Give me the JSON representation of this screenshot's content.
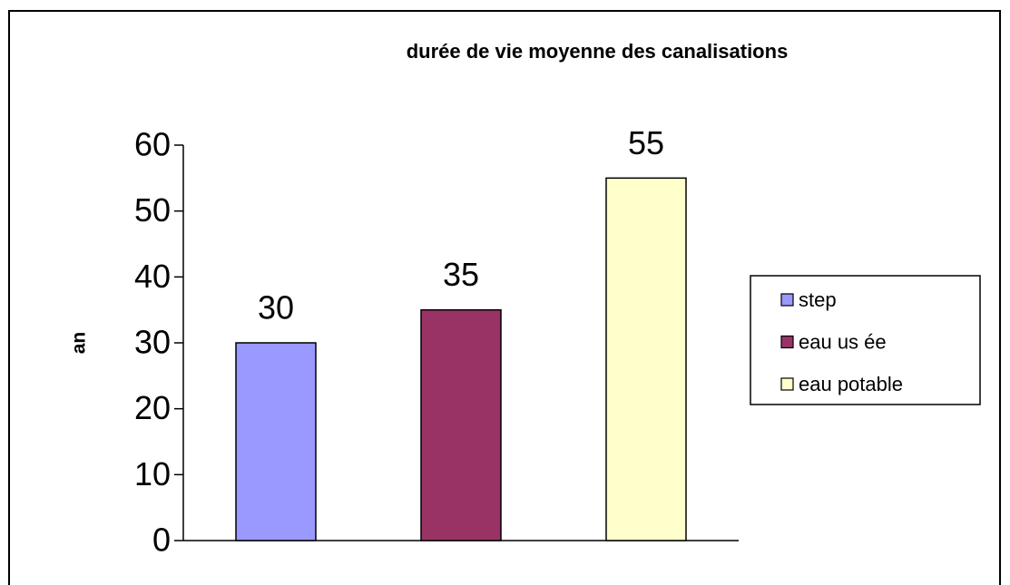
{
  "chart_data": {
    "type": "bar",
    "title": "durée de vie moyenne des canalisations",
    "y_label": "an",
    "categories": [
      null
    ],
    "series": [
      {
        "name": "step",
        "color": "#9999ff",
        "values": [
          30
        ]
      },
      {
        "name": "eau us ée",
        "color": "#993366",
        "values": [
          35
        ]
      },
      {
        "name": "eau potable",
        "color": "#ffffcc",
        "values": [
          55
        ]
      }
    ],
    "ylim": [
      0,
      60
    ],
    "yticks": [
      0,
      10,
      20,
      30,
      40,
      50,
      60
    ],
    "legend": "right",
    "grid": false,
    "value_labels_shown": true
  }
}
